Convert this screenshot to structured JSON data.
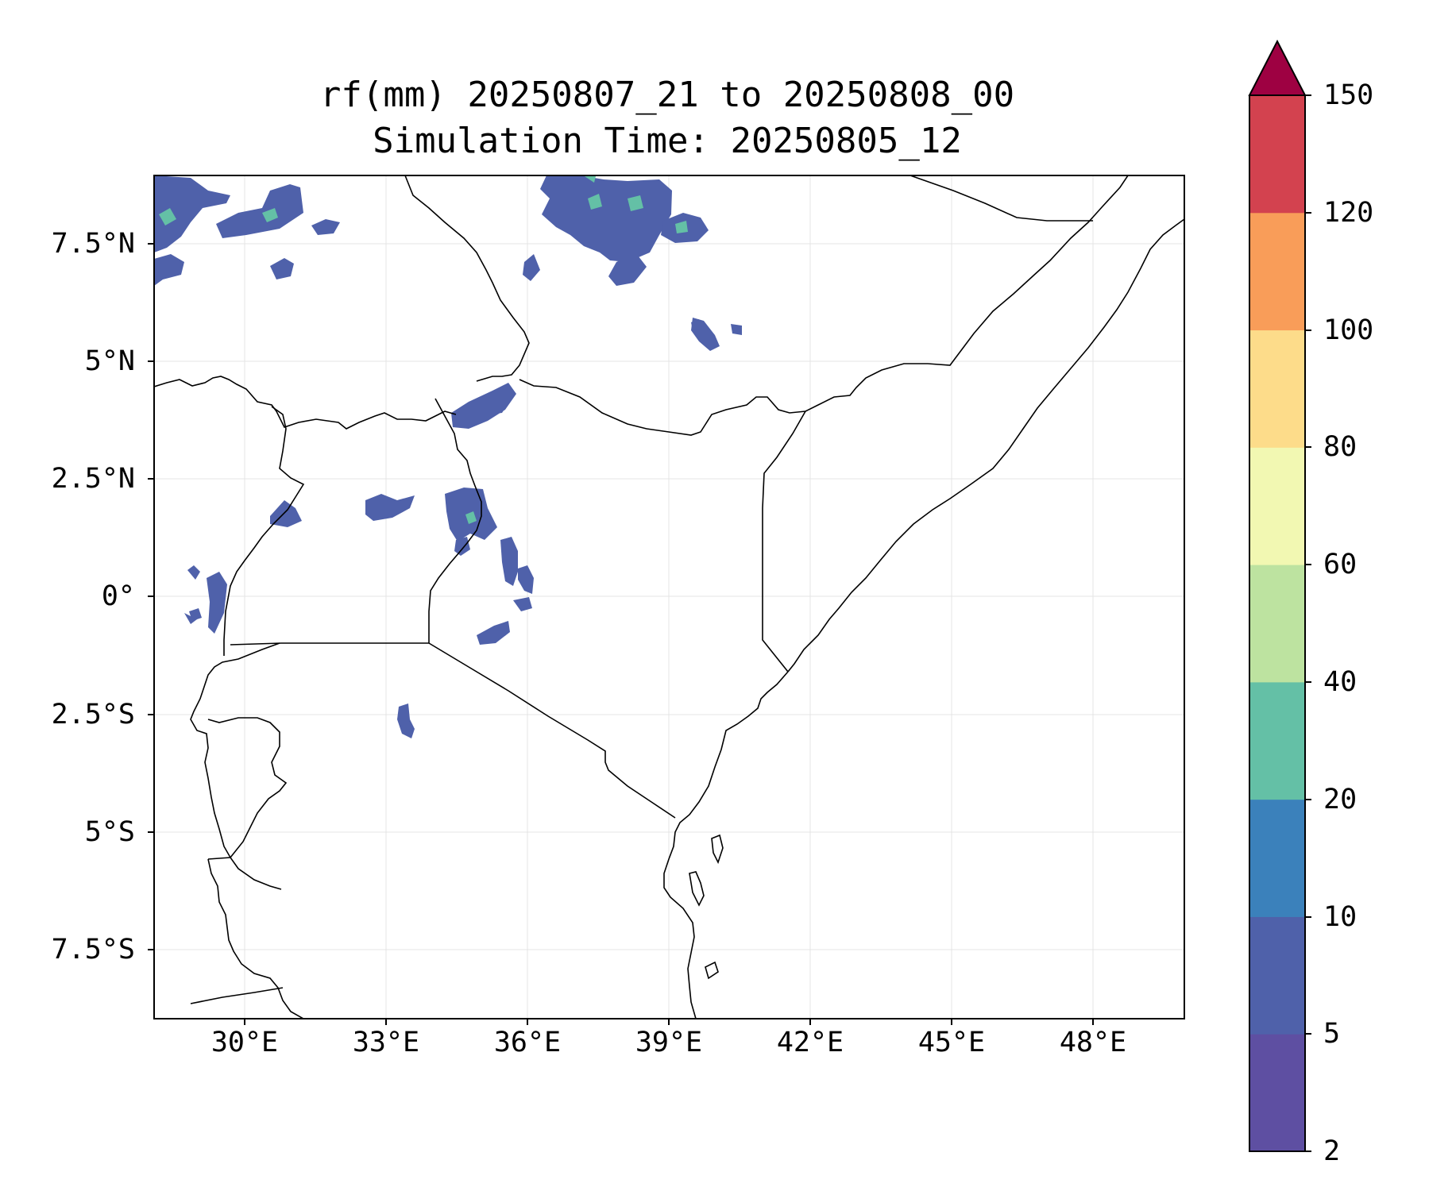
{
  "title": {
    "line1": "rf(mm) 20250807_21 to 20250808_00",
    "line2": "Simulation Time: 20250805_12"
  },
  "map": {
    "lon_range_deg": [
      28.1,
      49.95
    ],
    "lat_range_deg": [
      -8.95,
      8.95
    ],
    "gridlines": true,
    "lat_tick_labels": [
      "7.5°N",
      "5°N",
      "2.5°N",
      "0°",
      "2.5°S",
      "5°S",
      "7.5°S"
    ],
    "lon_tick_labels": [
      "30°E",
      "33°E",
      "36°E",
      "39°E",
      "42°E",
      "45°E",
      "48°E"
    ],
    "colors": {
      "land_outline": "#000000",
      "gridline": "#e4e4e4",
      "background": "#ffffff"
    }
  },
  "colorbar": {
    "orientation": "vertical",
    "extend": "max",
    "tick_labels": [
      "2",
      "5",
      "10",
      "20",
      "40",
      "60",
      "80",
      "100",
      "120",
      "150"
    ],
    "level_colors": [
      "#5e4fa2",
      "#4f61aa",
      "#3b81bb",
      "#64c0a6",
      "#bde3a0",
      "#f2f8b2",
      "#fddc8a",
      "#f99d59",
      "#d3424f"
    ],
    "extend_color": "#9e0142"
  }
}
